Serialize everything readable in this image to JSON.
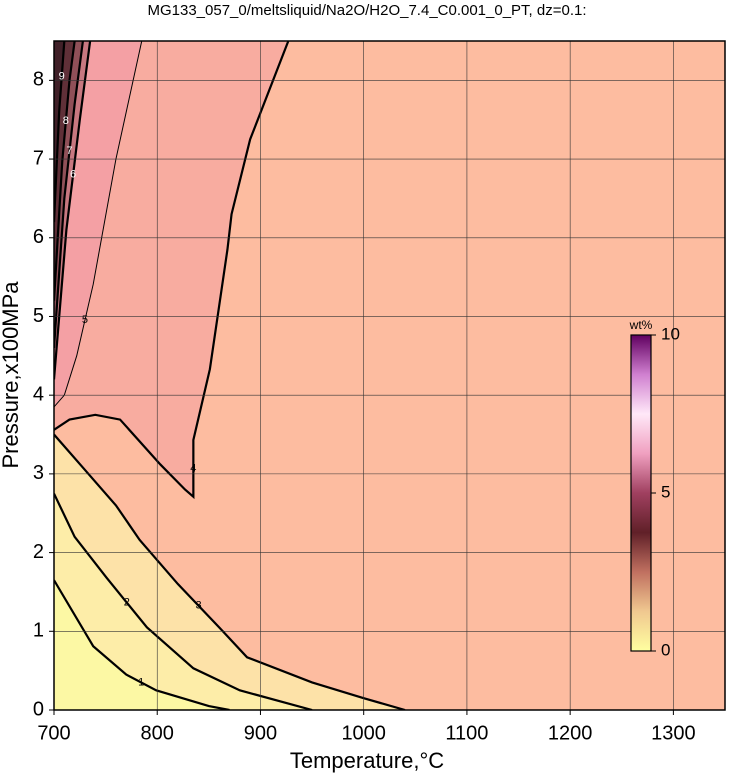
{
  "chart_data": {
    "type": "contour",
    "title": "MG133_057_0/meltsliquid/Na2O/H2O_7.4_C0.001_0_PT, dz=0.1:",
    "x_label": "Temperature,°C",
    "y_label": "Pressure,x100MPa",
    "xlim": [
      700,
      1350
    ],
    "ylim": [
      0,
      8.5
    ],
    "xticks": [
      700,
      800,
      900,
      1000,
      1100,
      1200,
      1300
    ],
    "yticks": [
      0,
      1,
      2,
      3,
      4,
      5,
      6,
      7,
      8
    ],
    "grid": true,
    "background_color": "#fdbca0",
    "contours": [
      {
        "level": 3,
        "color": "#fde2a8",
        "bold": true,
        "side": "below",
        "x": [
          700,
          730,
          760,
          783,
          820,
          860,
          887,
          950,
          1000,
          1040
        ],
        "y": [
          3.5,
          3.05,
          2.6,
          2.16,
          1.6,
          1.05,
          0.67,
          0.35,
          0.15,
          0
        ]
      },
      {
        "level": 2,
        "color": "#fdeda8",
        "bold": true,
        "side": "below",
        "x": [
          700,
          720,
          751,
          790,
          835,
          880,
          950
        ],
        "y": [
          2.75,
          2.2,
          1.68,
          1.05,
          0.53,
          0.25,
          0
        ]
      },
      {
        "level": 1,
        "color": "#fcf8a4",
        "bold": true,
        "side": "below",
        "x": [
          700,
          738,
          770,
          799,
          850,
          870
        ],
        "y": [
          1.65,
          0.81,
          0.45,
          0.25,
          0.05,
          0
        ]
      },
      {
        "level": 4,
        "color": "#f8aca0",
        "bold": true,
        "side": "above",
        "x": [
          927,
          890,
          872,
          868,
          851,
          835,
          835,
          827,
          803,
          764,
          740,
          715,
          700
        ],
        "y": [
          8.5,
          7.25,
          6.3,
          5.85,
          4.33,
          3.43,
          2.71,
          2.8,
          3.12,
          3.69,
          3.75,
          3.69,
          3.56
        ]
      },
      {
        "level": 5,
        "color": "#f4a0a4",
        "bold": false,
        "side": "above",
        "x": [
          785,
          760,
          738,
          722,
          710,
          700
        ],
        "y": [
          8.5,
          7.0,
          5.41,
          4.5,
          4.0,
          3.85
        ]
      },
      {
        "level": 6,
        "color": "#c87880",
        "bold": true,
        "side": "above",
        "x": [
          735,
          725,
          712,
          700
        ],
        "y": [
          8.5,
          7.5,
          6.1,
          4.2
        ]
      },
      {
        "level": 7,
        "color": "#905058",
        "bold": true,
        "side": "above",
        "x": [
          728,
          720,
          710,
          700
        ],
        "y": [
          8.5,
          7.7,
          6.5,
          4.6
        ]
      },
      {
        "level": 8,
        "color": "#603038",
        "bold": true,
        "side": "above",
        "x": [
          720,
          715,
          708,
          700
        ],
        "y": [
          8.5,
          8.0,
          6.97,
          5.2
        ]
      },
      {
        "level": 9,
        "color": "#402028",
        "bold": true,
        "side": "above",
        "x": [
          710,
          705,
          700
        ],
        "y": [
          8.5,
          7.6,
          6.2
        ]
      }
    ],
    "colorbar": {
      "label": "wt%",
      "lim": [
        0,
        10
      ],
      "ticks": [
        0,
        5,
        10
      ],
      "colors": [
        "#ffffa0",
        "#f0c890",
        "#c07060",
        "#602028",
        "#a04060",
        "#f0a0c0",
        "#ffe8f8",
        "#d080d0",
        "#600060"
      ]
    }
  }
}
